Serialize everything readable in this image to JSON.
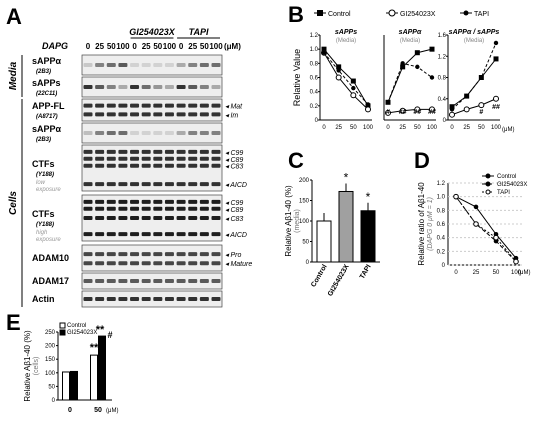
{
  "panel_labels": {
    "A": "A",
    "B": "B",
    "C": "C",
    "D": "D",
    "E": "E"
  },
  "blot": {
    "dapg_label": "DAPG",
    "unit": "(μM)",
    "group_headers": [
      "GI254023X",
      "TAPI"
    ],
    "concentrations": [
      "0",
      "25",
      "50",
      "100",
      "0",
      "25",
      "50",
      "100",
      "0",
      "25",
      "50",
      "100"
    ],
    "side_labels": [
      "Media",
      "Cells"
    ],
    "rows": [
      {
        "name": "sAPPα",
        "sub": "(2B3)",
        "markers": []
      },
      {
        "name": "sAPPs",
        "sub": "(22C11)",
        "markers": []
      },
      {
        "name": "APP-FL",
        "sub": "(A8717)",
        "markers": [
          "Mat",
          "Im"
        ]
      },
      {
        "name": "sAPPα",
        "sub": "(2B3)",
        "markers": []
      },
      {
        "name": "CTFs",
        "sub": "(Y188)",
        "note": "low exposure",
        "markers": [
          "C99",
          "C89",
          "C83",
          "AICD"
        ]
      },
      {
        "name": "CTFs",
        "sub": "(Y188)",
        "note": "high exposure",
        "markers": [
          "C99",
          "C89",
          "C83",
          "AICD"
        ]
      },
      {
        "name": "ADAM10",
        "sub": "",
        "markers": [
          "Pro",
          "Mature"
        ]
      },
      {
        "name": "ADAM17",
        "sub": "",
        "markers": []
      },
      {
        "name": "Actin",
        "sub": "",
        "markers": []
      }
    ]
  },
  "chart_data": [
    {
      "id": "B",
      "type": "line",
      "ylabel": "Relative Value",
      "legend": [
        "Control",
        "GI254023X",
        "TAPI"
      ],
      "x": [
        0,
        25,
        50,
        100
      ],
      "x_unit": "(μM)",
      "subplots": [
        {
          "title": "sAPPs",
          "subtitle": "(Media)",
          "ylim": [
            0,
            1.2
          ],
          "yticks": [
            "0",
            "0.2",
            "0.4",
            "0.6",
            "0.8",
            "1.0",
            "1.2"
          ],
          "series": [
            {
              "name": "Control",
              "values": [
                1.0,
                0.75,
                0.55,
                0.2
              ]
            },
            {
              "name": "GI254023X",
              "values": [
                0.95,
                0.6,
                0.35,
                0.15
              ]
            },
            {
              "name": "TAPI",
              "values": [
                0.95,
                0.7,
                0.45,
                0.22
              ]
            }
          ],
          "annotations": []
        },
        {
          "title": "sAPPα",
          "subtitle": "(Media)",
          "ylim": [
            0,
            1.2
          ],
          "series": [
            {
              "name": "Control",
              "values": [
                0.25,
                0.75,
                0.95,
                1.0
              ]
            },
            {
              "name": "GI254023X",
              "values": [
                0.1,
                0.13,
                0.15,
                0.15
              ]
            },
            {
              "name": "TAPI",
              "values": [
                0.25,
                0.8,
                0.75,
                0.6
              ]
            }
          ],
          "annotations": [
            "#",
            "##",
            "##",
            "##"
          ]
        },
        {
          "title": "sAPPα / sAPPs",
          "subtitle": "(Media)",
          "ylim": [
            0,
            1.6
          ],
          "yticks": [
            "0",
            "0.4",
            "0.8",
            "1.2",
            "1.6"
          ],
          "series": [
            {
              "name": "Control",
              "values": [
                0.25,
                0.45,
                0.8,
                1.15
              ]
            },
            {
              "name": "GI254023X",
              "values": [
                0.1,
                0.2,
                0.28,
                0.4
              ]
            },
            {
              "name": "TAPI",
              "values": [
                0.2,
                0.45,
                0.8,
                1.45
              ]
            }
          ],
          "annotations": [
            "#",
            "##"
          ]
        }
      ]
    },
    {
      "id": "C",
      "type": "bar",
      "ylabel": "Relative Aβ1-40 (%)",
      "ylabel_sub": "(media)",
      "categories": [
        "Control",
        "GI254023X",
        "TAPI"
      ],
      "values": [
        100,
        172,
        125
      ],
      "colors": [
        "#ffffff",
        "#a0a0a0",
        "#000000"
      ],
      "ylim": [
        0,
        200
      ],
      "yticks": [
        "0",
        "50",
        "100",
        "150",
        "200"
      ],
      "annotations": [
        "",
        "*",
        "*"
      ]
    },
    {
      "id": "D",
      "type": "line",
      "ylabel": "Relative ratio of Aβ1-40",
      "ylabel_sub": "(DAPG 0 μM = 1)",
      "x": [
        0,
        25,
        50,
        100
      ],
      "x_unit": "(μM)",
      "ylim": [
        0,
        1.2
      ],
      "yticks": [
        "0",
        "0.2",
        "0.4",
        "0.6",
        "0.8",
        "1.0",
        "1.2"
      ],
      "series": [
        {
          "name": "Control",
          "values": [
            1.0,
            0.85,
            0.45,
            0.1
          ]
        },
        {
          "name": "GI254023X",
          "values": [
            1.0,
            0.6,
            0.35,
            0.05
          ]
        },
        {
          "name": "TAPI",
          "values": [
            1.0,
            0.6,
            0.4,
            0.05
          ]
        }
      ]
    },
    {
      "id": "E",
      "type": "bar",
      "ylabel": "Relative Aβ1-40 (%)",
      "ylabel_sub": "(cells)",
      "categories": [
        "0",
        "50"
      ],
      "x_unit": "(μM)",
      "legend": [
        "Control",
        "GI254023X"
      ],
      "series": [
        {
          "name": "Control",
          "values": [
            103,
            165
          ]
        },
        {
          "name": "GI254023X",
          "values": [
            105,
            235
          ]
        }
      ],
      "ylim": [
        0,
        250
      ],
      "yticks": [
        "0",
        "50",
        "100",
        "150",
        "200",
        "250"
      ],
      "annotations": [
        "**",
        "**",
        "#"
      ]
    }
  ]
}
